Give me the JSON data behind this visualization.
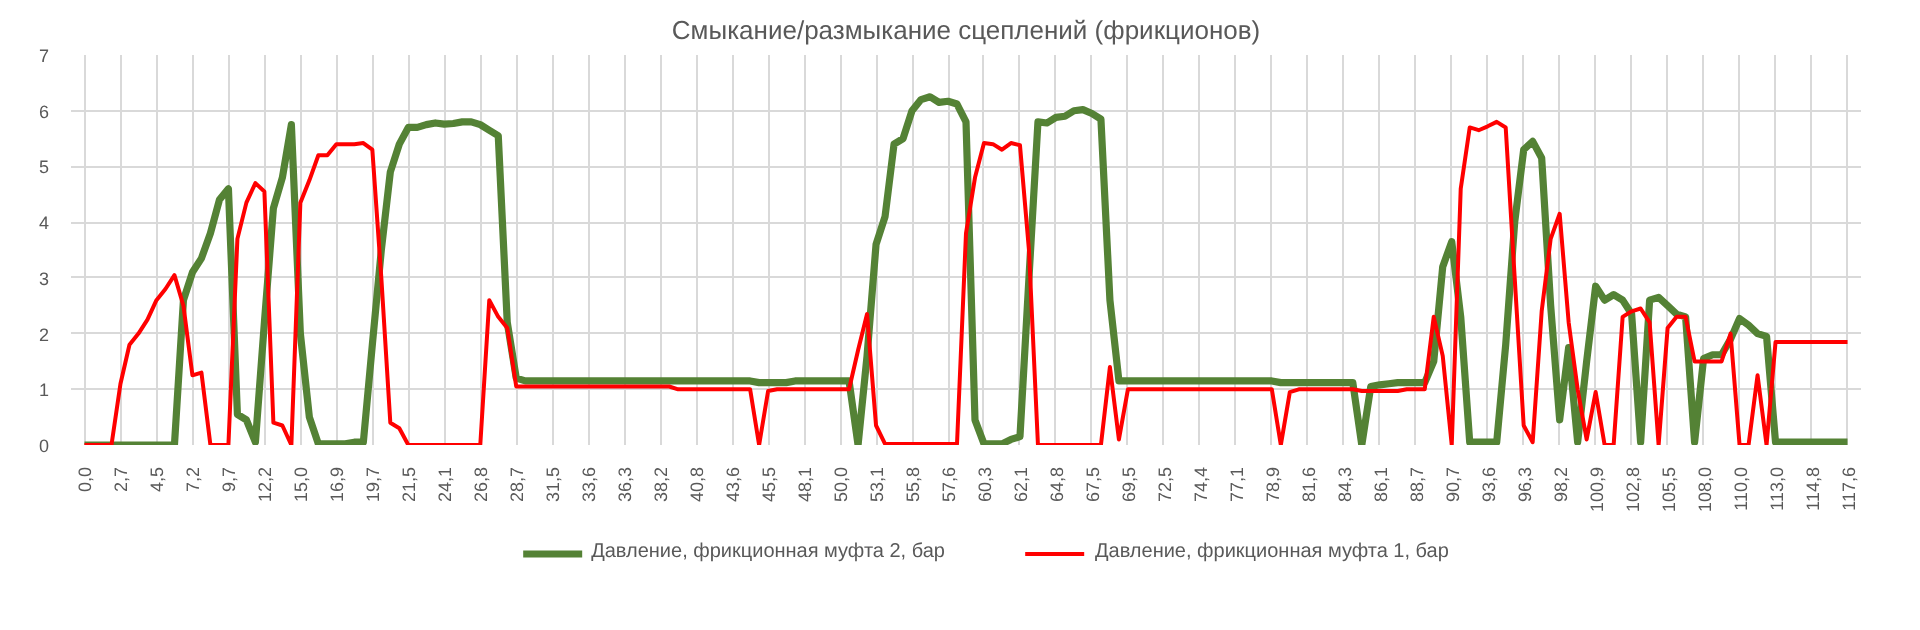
{
  "chart_data": {
    "type": "line",
    "title": "Смыкание/размыкание сцеплений (фрикционов)",
    "categories": [
      "0,0",
      null,
      null,
      null,
      "2,7",
      null,
      null,
      null,
      "4,5",
      null,
      null,
      null,
      "7,2",
      null,
      null,
      null,
      "9,7",
      null,
      null,
      null,
      "12,2",
      null,
      null,
      null,
      "15,0",
      null,
      null,
      null,
      "16,9",
      null,
      null,
      null,
      "19,7",
      null,
      null,
      null,
      "21,5",
      null,
      null,
      null,
      "24,1",
      null,
      null,
      null,
      "26,8",
      null,
      null,
      null,
      "28,7",
      null,
      null,
      null,
      "31,5",
      null,
      null,
      null,
      "33,6",
      null,
      null,
      null,
      "36,3",
      null,
      null,
      null,
      "38,2",
      null,
      null,
      null,
      "40,8",
      null,
      null,
      null,
      "43,6",
      null,
      null,
      null,
      "45,5",
      null,
      null,
      null,
      "48,1",
      null,
      null,
      null,
      "50,0",
      null,
      null,
      null,
      "53,1",
      null,
      null,
      null,
      "55,8",
      null,
      null,
      null,
      "57,6",
      null,
      null,
      null,
      "60,3",
      null,
      null,
      null,
      "62,1",
      null,
      null,
      null,
      "64,8",
      null,
      null,
      null,
      "67,5",
      null,
      null,
      null,
      "69,5",
      null,
      null,
      null,
      "72,5",
      null,
      null,
      null,
      "74,4",
      null,
      null,
      null,
      "77,1",
      null,
      null,
      null,
      "78,9",
      null,
      null,
      null,
      "81,6",
      null,
      null,
      null,
      "84,3",
      null,
      null,
      null,
      "86,1",
      null,
      null,
      null,
      "88,7",
      null,
      null,
      null,
      "90,7",
      null,
      null,
      null,
      "93,6",
      null,
      null,
      null,
      "96,3",
      null,
      null,
      null,
      "98,2",
      null,
      null,
      null,
      "100,9",
      null,
      null,
      null,
      "102,8",
      null,
      null,
      null,
      "105,5",
      null,
      null,
      null,
      "108,0",
      null,
      null,
      null,
      "110,0",
      null,
      null,
      null,
      "113,0",
      null,
      null,
      null,
      "114,8",
      null,
      null,
      null,
      "117,6"
    ],
    "series": [
      {
        "name": "Давление, фрикционная муфта 2, бар",
        "color": "#548235",
        "values": [
          0,
          0,
          0,
          0,
          0,
          0,
          0,
          0,
          0,
          0,
          0,
          2.6,
          3.1,
          3.35,
          3.8,
          4.4,
          4.6,
          0.55,
          0.45,
          0.05,
          2.2,
          4.25,
          4.8,
          5.75,
          2.0,
          0.5,
          0.02,
          0.02,
          0.02,
          0.02,
          0.05,
          0.05,
          1.8,
          3.5,
          4.9,
          5.4,
          5.7,
          5.7,
          5.75,
          5.78,
          5.76,
          5.77,
          5.8,
          5.8,
          5.75,
          5.65,
          5.55,
          2.2,
          1.2,
          1.15,
          1.15,
          1.15,
          1.15,
          1.15,
          1.15,
          1.15,
          1.15,
          1.15,
          1.15,
          1.15,
          1.15,
          1.15,
          1.15,
          1.15,
          1.15,
          1.15,
          1.15,
          1.15,
          1.15,
          1.15,
          1.15,
          1.15,
          1.15,
          1.15,
          1.15,
          1.12,
          1.12,
          1.12,
          1.12,
          1.15,
          1.15,
          1.15,
          1.15,
          1.15,
          1.15,
          1.15,
          0,
          1.6,
          3.6,
          4.1,
          5.4,
          5.5,
          6.0,
          6.2,
          6.25,
          6.15,
          6.17,
          6.12,
          5.8,
          0.45,
          0.02,
          0.02,
          0.02,
          0.1,
          0.15,
          3.0,
          5.8,
          5.78,
          5.88,
          5.9,
          6.0,
          6.02,
          5.95,
          5.85,
          2.6,
          1.15,
          1.15,
          1.15,
          1.15,
          1.15,
          1.15,
          1.15,
          1.15,
          1.15,
          1.15,
          1.15,
          1.15,
          1.15,
          1.15,
          1.15,
          1.15,
          1.15,
          1.15,
          1.12,
          1.12,
          1.12,
          1.12,
          1.12,
          1.12,
          1.12,
          1.12,
          1.12,
          0,
          1.05,
          1.08,
          1.1,
          1.12,
          1.12,
          1.12,
          1.12,
          1.5,
          3.2,
          3.65,
          2.3,
          0.05,
          0.05,
          0.05,
          0.05,
          1.8,
          4.0,
          5.3,
          5.45,
          5.15,
          2.5,
          0.45,
          1.75,
          0.05,
          1.5,
          2.85,
          2.6,
          2.7,
          2.6,
          2.35,
          0.05,
          2.6,
          2.65,
          2.5,
          2.35,
          2.3,
          0.05,
          1.55,
          1.62,
          1.62,
          1.9,
          2.27,
          2.15,
          2.0,
          1.95,
          0.05,
          0.05,
          0.05,
          0.05,
          0.05,
          0.05,
          0.05,
          0.05,
          0.05
        ]
      },
      {
        "name": "Давление, фрикционная муфта 1, бар",
        "color": "#ff0000",
        "values": [
          0,
          0,
          0,
          0,
          1.1,
          1.8,
          2.0,
          2.25,
          2.6,
          2.8,
          3.05,
          2.5,
          1.25,
          1.3,
          0,
          0,
          0,
          3.7,
          4.35,
          4.7,
          4.55,
          0.4,
          0.35,
          0,
          4.35,
          4.75,
          5.2,
          5.2,
          5.4,
          5.4,
          5.4,
          5.42,
          5.3,
          3.0,
          0.4,
          0.3,
          0,
          0,
          0,
          0,
          0,
          0,
          0,
          0,
          0,
          2.6,
          2.3,
          2.1,
          1.05,
          1.05,
          1.05,
          1.05,
          1.05,
          1.05,
          1.05,
          1.05,
          1.05,
          1.05,
          1.05,
          1.05,
          1.05,
          1.05,
          1.05,
          1.05,
          1.05,
          1.05,
          1.0,
          1.0,
          1.0,
          1.0,
          1.0,
          1.0,
          1.0,
          1.0,
          1.0,
          0,
          0.97,
          1.0,
          1.0,
          1.0,
          1.0,
          1.0,
          1.0,
          1.0,
          1.0,
          1.0,
          1.7,
          2.35,
          0.35,
          0.02,
          0.02,
          0.02,
          0.02,
          0.02,
          0.02,
          0.02,
          0.02,
          0.02,
          3.8,
          4.8,
          5.42,
          5.4,
          5.3,
          5.42,
          5.38,
          3.5,
          0,
          0,
          0,
          0,
          0,
          0,
          0,
          0,
          1.4,
          0.1,
          1.0,
          1.0,
          1.0,
          1.0,
          1.0,
          1.0,
          1.0,
          1.0,
          1.0,
          1.0,
          1.0,
          1.0,
          1.0,
          1.0,
          1.0,
          1.0,
          1.0,
          0,
          0.95,
          1.0,
          1.0,
          1.0,
          1.0,
          1.0,
          1.0,
          1.0,
          0.97,
          0.97,
          0.97,
          0.97,
          0.97,
          1.0,
          1.0,
          1.0,
          2.3,
          1.6,
          0,
          4.6,
          5.7,
          5.65,
          5.72,
          5.8,
          5.7,
          3.0,
          0.35,
          0.05,
          2.4,
          3.7,
          4.15,
          2.2,
          1.0,
          0.1,
          0.95,
          0,
          0,
          2.3,
          2.4,
          2.45,
          2.2,
          0,
          2.1,
          2.3,
          2.3,
          1.5,
          1.5,
          1.5,
          1.5,
          2.0,
          0,
          0,
          1.25,
          0,
          1.85,
          1.85,
          1.85,
          1.85,
          1.85,
          1.85,
          1.85,
          1.85,
          1.85
        ]
      }
    ],
    "ylim": [
      0,
      7
    ],
    "yticks": [
      0,
      1,
      2,
      3,
      4,
      5,
      6,
      7
    ],
    "grid": true,
    "legend": "bottom"
  }
}
